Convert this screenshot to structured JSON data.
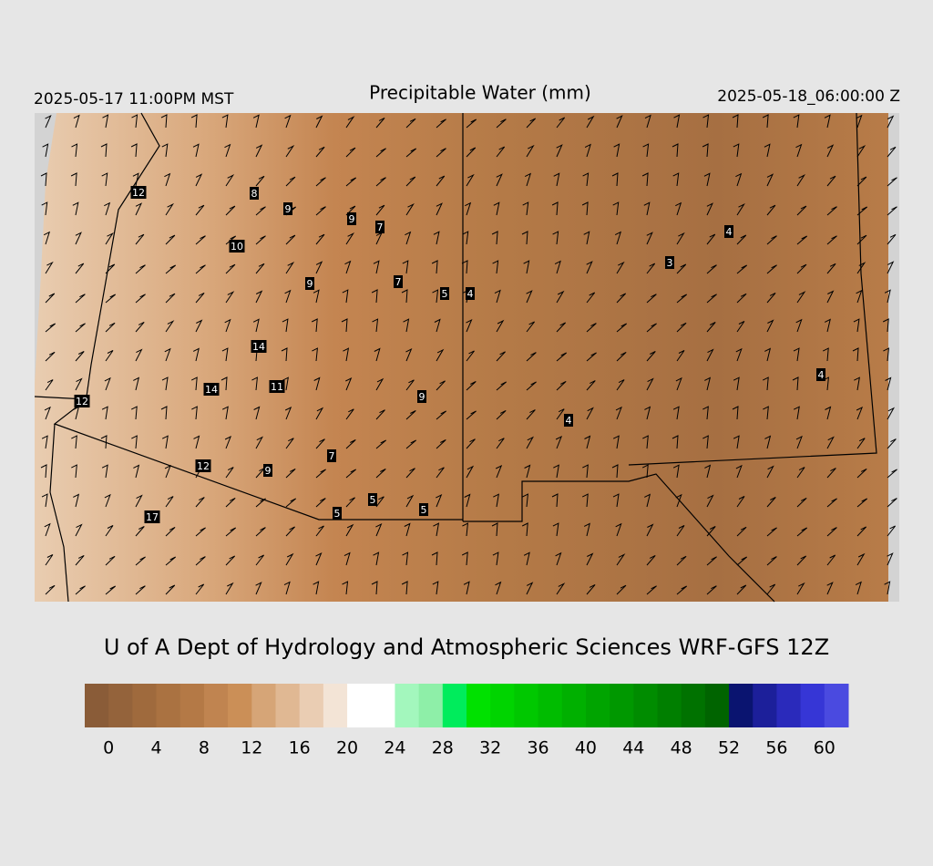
{
  "header": {
    "valid_local": "2025-05-17 11:00PM MST",
    "title": "Precipitable Water (mm)",
    "valid_utc": "2025-05-18_06:00:00 Z"
  },
  "station_labels": [
    12,
    8,
    9,
    9,
    7,
    10,
    9,
    7,
    5,
    4,
    4,
    3,
    14,
    12,
    14,
    11,
    9,
    4,
    4,
    7,
    12,
    9,
    5,
    5,
    5,
    17
  ],
  "credit": "U of A Dept of Hydrology and Atmospheric Sciences WRF-GFS 12Z",
  "colorbar": {
    "lim": [
      -2,
      62
    ],
    "ticks": [
      0,
      4,
      8,
      12,
      16,
      20,
      24,
      28,
      32,
      36,
      40,
      44,
      48,
      52,
      56,
      60
    ],
    "colors": [
      "#8a5c38",
      "#94633b",
      "#9f6a3d",
      "#aa7241",
      "#b47946",
      "#c08450",
      "#cb8f57",
      "#d6a577",
      "#e0b893",
      "#eacdb3",
      "#f3e4d6",
      "#ffffff",
      "#ffffff",
      "#a3f7bd",
      "#8eefa8",
      "#00ec5c",
      "#00e100",
      "#00d400",
      "#00c800",
      "#00bc00",
      "#00b000",
      "#00a400",
      "#009800",
      "#008c00",
      "#007f00",
      "#007200",
      "#006400",
      "#0a1470",
      "#1c1f9a",
      "#2a2abb",
      "#3636d6",
      "#4a4ae0"
    ]
  }
}
